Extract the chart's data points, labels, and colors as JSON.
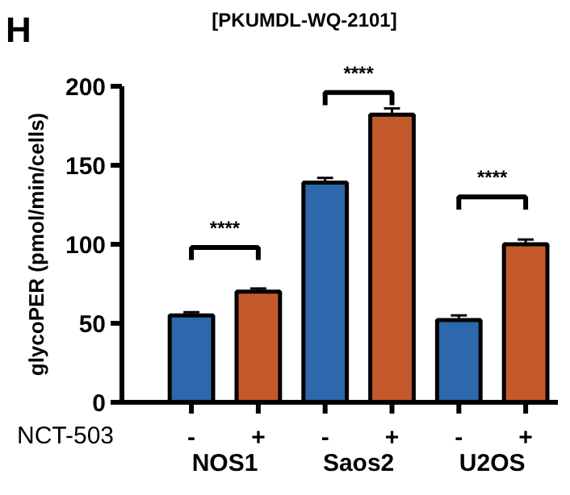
{
  "chart_data": {
    "type": "bar",
    "title": "[PKUMDL-WQ-2101]",
    "ylabel": "glycoPER (pmol/min/cells)",
    "categories": [
      "-",
      "+",
      "-",
      "+",
      "-",
      "+"
    ],
    "values": [
      55,
      70,
      139,
      182,
      52,
      100
    ],
    "errors": [
      2,
      2,
      3,
      4,
      3,
      3
    ],
    "colors": [
      "#2c68ab",
      "#c45a2c",
      "#2c68ab",
      "#c45a2c",
      "#2c68ab",
      "#c45a2c"
    ],
    "ylim": [
      0,
      200
    ],
    "yticks": [
      0,
      50,
      100,
      150,
      200
    ],
    "grid": false,
    "annotations": [
      "H",
      "NCT-503",
      "NOS1",
      "Saos2",
      "U2OS",
      "****",
      "****",
      "****"
    ]
  }
}
